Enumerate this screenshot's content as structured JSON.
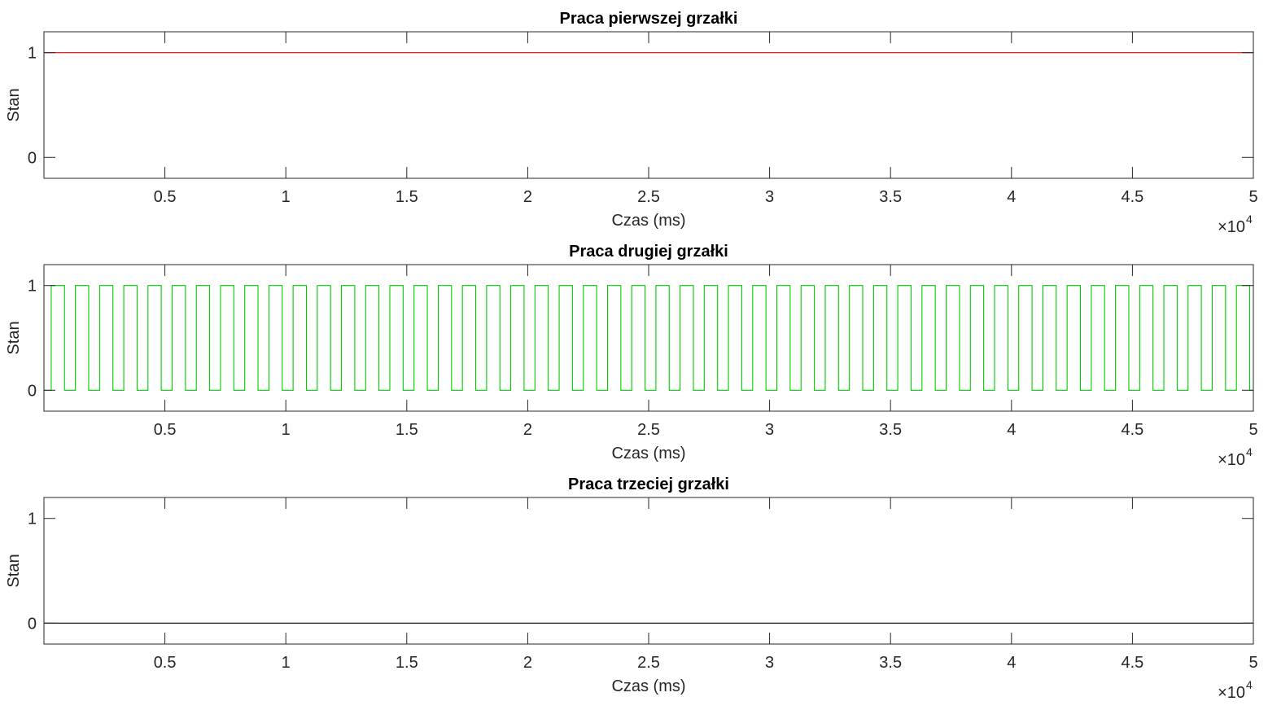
{
  "chart_data": [
    {
      "type": "line",
      "title": "Praca pierwszej grzałki",
      "xlabel": "Czas (ms)",
      "ylabel": "Stan",
      "x_exponent_base": "×10",
      "x_exponent_power": "4",
      "xlim": [
        0,
        50000
      ],
      "ylim": [
        -0.2,
        1.2
      ],
      "xticks": [
        5000,
        10000,
        15000,
        20000,
        25000,
        30000,
        35000,
        40000,
        45000,
        50000
      ],
      "xtick_labels": [
        "0.5",
        "1",
        "1.5",
        "2",
        "2.5",
        "3",
        "3.5",
        "4",
        "4.5",
        "5"
      ],
      "yticks": [
        0,
        1
      ],
      "ytick_labels": [
        "0",
        "1"
      ],
      "grid": false,
      "series": [
        {
          "color": "#e00000",
          "signal": "constant",
          "value": 1,
          "x_range": [
            0,
            50000
          ]
        }
      ]
    },
    {
      "type": "line",
      "title": "Praca drugiej grzałki",
      "xlabel": "Czas (ms)",
      "ylabel": "Stan",
      "x_exponent_base": "×10",
      "x_exponent_power": "4",
      "xlim": [
        0,
        50000
      ],
      "ylim": [
        -0.2,
        1.2
      ],
      "xticks": [
        5000,
        10000,
        15000,
        20000,
        25000,
        30000,
        35000,
        40000,
        45000,
        50000
      ],
      "xtick_labels": [
        "0.5",
        "1",
        "1.5",
        "2",
        "2.5",
        "3",
        "3.5",
        "4",
        "4.5",
        "5"
      ],
      "yticks": [
        0,
        1
      ],
      "ytick_labels": [
        "0",
        "1"
      ],
      "grid": false,
      "series": [
        {
          "color": "#00cc00",
          "signal": "square-wave",
          "low": 0,
          "high": 1,
          "x_range": [
            0,
            50000
          ],
          "first_rise": 300,
          "period": 1000,
          "high_duration": 550
        }
      ]
    },
    {
      "type": "line",
      "title": "Praca trzeciej grzałki",
      "xlabel": "Czas (ms)",
      "ylabel": "Stan",
      "x_exponent_base": "×10",
      "x_exponent_power": "4",
      "xlim": [
        0,
        50000
      ],
      "ylim": [
        -0.2,
        1.2
      ],
      "xticks": [
        5000,
        10000,
        15000,
        20000,
        25000,
        30000,
        35000,
        40000,
        45000,
        50000
      ],
      "xtick_labels": [
        "0.5",
        "1",
        "1.5",
        "2",
        "2.5",
        "3",
        "3.5",
        "4",
        "4.5",
        "5"
      ],
      "yticks": [
        0,
        1
      ],
      "ytick_labels": [
        "0",
        "1"
      ],
      "grid": false,
      "series": [
        {
          "color": "#000000",
          "signal": "constant",
          "value": 0,
          "x_range": [
            0,
            50000
          ]
        }
      ]
    }
  ]
}
